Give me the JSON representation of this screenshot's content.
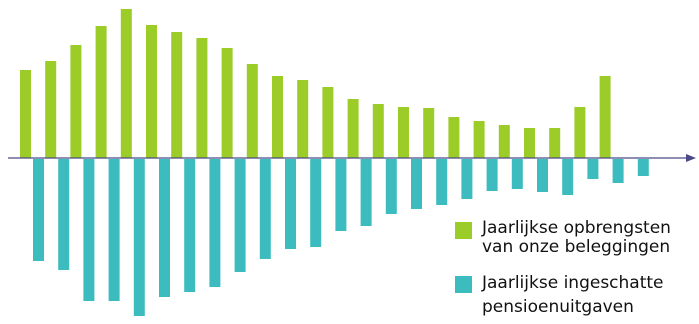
{
  "chart_data": {
    "type": "bar",
    "title": "",
    "xlabel": "",
    "ylabel": "",
    "axis_ticks": false,
    "grid": false,
    "legend_position": "bottom-right",
    "series": [
      {
        "name_lines": [
          "Jaarlijkse opbrengsten",
          "van onze beleggingen"
        ],
        "color": "#9ccc28",
        "values": [
          88,
          97,
          113,
          132,
          149,
          133,
          126,
          120,
          110,
          94,
          82,
          78,
          71,
          59,
          54,
          51,
          50,
          41,
          37,
          33,
          30,
          30,
          51,
          82
        ]
      },
      {
        "name_lines": [
          "Jaarlijkse ingeschatte",
          "pensioenuitgaven"
        ],
        "color": "#3cbcbf",
        "values": [
          -102,
          -111,
          -142,
          -142,
          -157,
          -138,
          -133,
          -128,
          -113,
          -100,
          -90,
          -88,
          -72,
          -67,
          -55,
          -50,
          -46,
          -40,
          -32,
          -30,
          -33,
          -36,
          -20,
          -24,
          -17
        ]
      }
    ]
  }
}
